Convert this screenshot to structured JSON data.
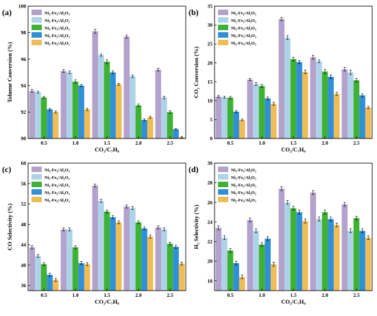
{
  "chart_data": [
    {
      "panel_label": "(a)",
      "type": "bar",
      "xlabel": "CO₂/C₇H₈",
      "ylabel": "Toluene Conversion (%)",
      "categories": [
        "0.5",
        "1.0",
        "1.5",
        "2.0",
        "2.5"
      ],
      "ylim": [
        90,
        100
      ],
      "yticks": [
        "90",
        "92",
        "94",
        "96",
        "98",
        "100"
      ],
      "legend_position": "top-left",
      "series": [
        {
          "name": "Ni₃-Fe₁/Al₂O₃",
          "values": [
            93.6,
            95.1,
            98.1,
            97.7,
            95.2
          ],
          "err": [
            0.1,
            0.1,
            0.15,
            0.12,
            0.12
          ]
        },
        {
          "name": "Ni₂-Fe₁/Al₂O₃",
          "values": [
            93.5,
            95.0,
            96.3,
            94.7,
            93.1
          ],
          "err": [
            0.08,
            0.1,
            0.08,
            0.1,
            0.1
          ]
        },
        {
          "name": "Ni₁-Fe₁/Al₂O₃",
          "values": [
            93.1,
            94.3,
            95.8,
            92.5,
            92.0
          ],
          "err": [
            0.08,
            0.12,
            0.15,
            0.1,
            0.1
          ]
        },
        {
          "name": "Ni₁-Fe₂/Al₂O₃",
          "values": [
            92.2,
            94.0,
            95.0,
            91.4,
            90.7
          ],
          "err": [
            0.08,
            0.08,
            0.12,
            0.08,
            0.05
          ]
        },
        {
          "name": "Ni₁-Fe₃/Al₂O₃",
          "values": [
            92.0,
            92.2,
            94.1,
            91.6,
            90.1
          ],
          "err": [
            0.08,
            0.08,
            0.08,
            0.08,
            0.05
          ]
        }
      ]
    },
    {
      "panel_label": "(b)",
      "type": "bar",
      "xlabel": "CO₂/C₇H₈",
      "ylabel": "CO₂ Conversion (%)",
      "categories": [
        "0.5",
        "1.0",
        "1.5",
        "2.0",
        "2.5"
      ],
      "ylim": [
        0,
        35
      ],
      "yticks": [
        "0",
        "5",
        "10",
        "15",
        "20",
        "25",
        "30",
        "35"
      ],
      "legend_position": "top-left",
      "series": [
        {
          "name": "Ni₃-Fe₁/Al₂O₃",
          "values": [
            11.1,
            15.6,
            31.6,
            21.5,
            18.3
          ],
          "err": [
            0.3,
            0.3,
            0.4,
            0.5,
            0.5
          ]
        },
        {
          "name": "Ni₂-Fe₁/Al₂O₃",
          "values": [
            10.9,
            14.4,
            26.7,
            20.4,
            17.5
          ],
          "err": [
            0.3,
            0.4,
            0.5,
            0.4,
            0.6
          ]
        },
        {
          "name": "Ni₁-Fe₁/Al₂O₃",
          "values": [
            10.8,
            13.9,
            21.0,
            17.7,
            15.4
          ],
          "err": [
            0.3,
            0.4,
            0.5,
            0.6,
            0.5
          ]
        },
        {
          "name": "Ni₁-Fe₂/Al₂O₃",
          "values": [
            7.1,
            10.6,
            20.2,
            16.3,
            11.4
          ],
          "err": [
            0.3,
            0.4,
            0.4,
            0.5,
            0.4
          ]
        },
        {
          "name": "Ni₁-Fe₃/Al₂O₃",
          "values": [
            4.9,
            9.2,
            17.6,
            11.8,
            8.2
          ],
          "err": [
            0.2,
            0.4,
            0.5,
            0.4,
            0.3
          ]
        }
      ]
    },
    {
      "panel_label": "(c)",
      "type": "bar",
      "xlabel": "CO₂/C₇H₈",
      "ylabel": "CO Selectivity (%)",
      "categories": [
        "0.5",
        "1.0",
        "1.5",
        "2.0",
        "2.5"
      ],
      "ylim": [
        35,
        60
      ],
      "yticks": [
        "36",
        "40",
        "44",
        "48",
        "52",
        "56",
        "60"
      ],
      "legend_position": "top-left",
      "series": [
        {
          "name": "Ni₃-Fe₁/Al₂O₃",
          "values": [
            43.5,
            47.0,
            55.6,
            51.5,
            47.4
          ],
          "err": [
            0.3,
            0.3,
            0.3,
            0.3,
            0.3
          ]
        },
        {
          "name": "Ni₂-Fe₁/Al₂O₃",
          "values": [
            41.8,
            47.0,
            52.6,
            51.2,
            47.0
          ],
          "err": [
            0.3,
            0.3,
            0.3,
            0.3,
            0.3
          ]
        },
        {
          "name": "Ni₁-Fe₁/Al₂O₃",
          "values": [
            40.2,
            43.5,
            50.5,
            48.4,
            44.2
          ],
          "err": [
            0.3,
            0.3,
            0.3,
            0.3,
            0.3
          ]
        },
        {
          "name": "Ni₁-Fe₂/Al₂O₃",
          "values": [
            38.1,
            40.4,
            49.4,
            47.2,
            43.6
          ],
          "err": [
            0.3,
            0.3,
            0.3,
            0.3,
            0.3
          ]
        },
        {
          "name": "Ni₁-Fe₃/Al₂O₃",
          "values": [
            37.1,
            40.2,
            48.4,
            45.6,
            40.3
          ],
          "err": [
            0.3,
            0.3,
            0.3,
            0.3,
            0.3
          ]
        }
      ]
    },
    {
      "panel_label": "(d)",
      "type": "bar",
      "xlabel": "CO₂/C₇H₈",
      "ylabel": "H₂ Selectivity (%)",
      "categories": [
        "0.5",
        "1.0",
        "1.5",
        "2.0",
        "2.5"
      ],
      "ylim": [
        17,
        30
      ],
      "yticks": [
        "18",
        "20",
        "22",
        "24",
        "26",
        "28",
        "30"
      ],
      "legend_position": "top-left",
      "series": [
        {
          "name": "Ni₃-Fe₁/Al₂O₃",
          "values": [
            23.4,
            24.2,
            27.4,
            27.0,
            25.8
          ],
          "err": [
            0.2,
            0.2,
            0.2,
            0.2,
            0.2
          ]
        },
        {
          "name": "Ni₂-Fe₁/Al₂O₃",
          "values": [
            22.4,
            23.1,
            26.0,
            24.3,
            23.1
          ],
          "err": [
            0.2,
            0.2,
            0.2,
            0.2,
            0.2
          ]
        },
        {
          "name": "Ni₁-Fe₁/Al₂O₃",
          "values": [
            21.1,
            21.7,
            25.4,
            25.0,
            24.4
          ],
          "err": [
            0.2,
            0.2,
            0.2,
            0.2,
            0.2
          ]
        },
        {
          "name": "Ni₁-Fe₂/Al₂O₃",
          "values": [
            19.8,
            22.3,
            25.0,
            24.3,
            23.1
          ],
          "err": [
            0.2,
            0.2,
            0.2,
            0.2,
            0.2
          ]
        },
        {
          "name": "Ni₁-Fe₃/Al₂O₃",
          "values": [
            18.4,
            19.7,
            24.1,
            23.7,
            22.4
          ],
          "err": [
            0.2,
            0.2,
            0.2,
            0.2,
            0.2
          ]
        }
      ]
    }
  ],
  "colors": [
    "#b3a2cc",
    "#aed3e8",
    "#3fb233",
    "#2f8fd8",
    "#efbc55"
  ]
}
